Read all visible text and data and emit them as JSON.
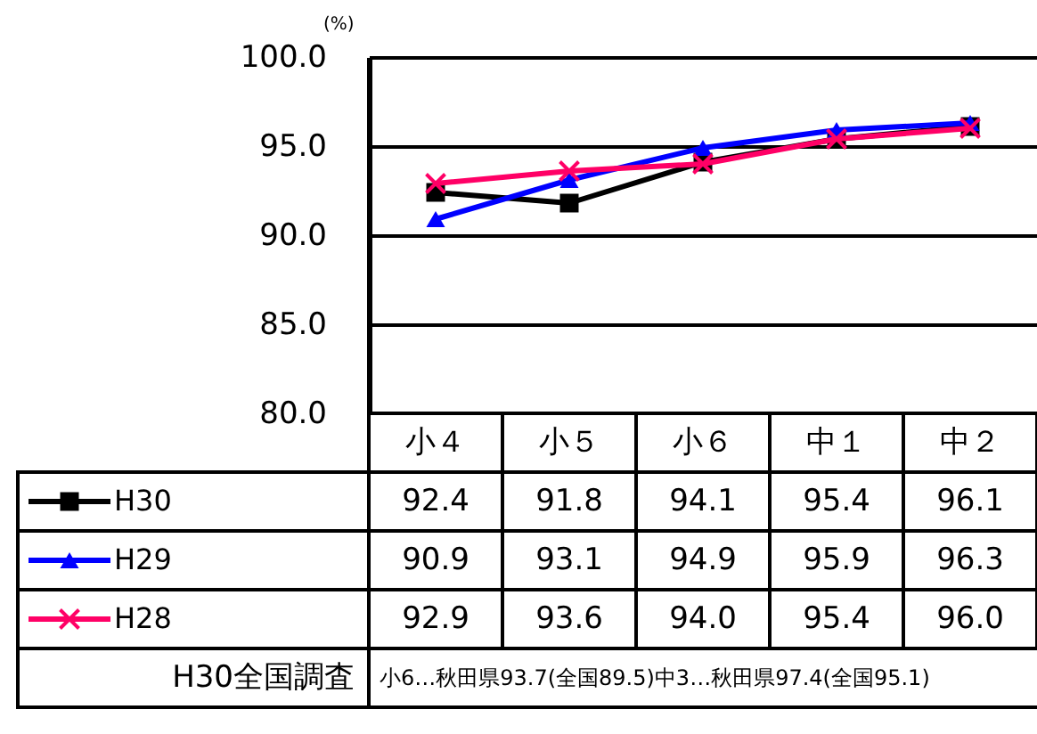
{
  "chart_data": {
    "type": "line",
    "ylabel": "(%)",
    "categories": [
      "小４",
      "小５",
      "小６",
      "中１",
      "中２"
    ],
    "series": [
      {
        "name": "H30",
        "color": "#000000",
        "marker": "square",
        "line_style": "solid",
        "values": [
          92.4,
          91.8,
          94.1,
          95.4,
          96.1
        ],
        "value_labels": [
          "92.4",
          "91.8",
          "94.1",
          "95.4",
          "96.1"
        ]
      },
      {
        "name": "H29",
        "color": "#0000ff",
        "marker": "triangle",
        "line_style": "solid",
        "values": [
          90.9,
          93.1,
          94.9,
          95.9,
          96.3
        ],
        "value_labels": [
          "90.9",
          "93.1",
          "94.9",
          "95.9",
          "96.3"
        ]
      },
      {
        "name": "H28",
        "color": "#ff0066",
        "marker": "cross",
        "line_style": "solid",
        "values": [
          92.9,
          93.6,
          94.0,
          95.4,
          96.0
        ],
        "value_labels": [
          "92.9",
          "93.6",
          "94.0",
          "95.4",
          "96.0"
        ]
      }
    ],
    "ylim": [
      80,
      100
    ],
    "yticks": [
      {
        "value": 80,
        "label": "80.0"
      },
      {
        "value": 85,
        "label": "85.0"
      },
      {
        "value": 90,
        "label": "90.0"
      },
      {
        "value": 95,
        "label": "95.0"
      },
      {
        "value": 100,
        "label": "100.0"
      }
    ],
    "grid": "y",
    "legend": "bottom left",
    "annotations": [
      "H30全国調査",
      "小6…秋田県93.7(全国89.5)中3…秋田県97.4(全国95.1)"
    ]
  }
}
